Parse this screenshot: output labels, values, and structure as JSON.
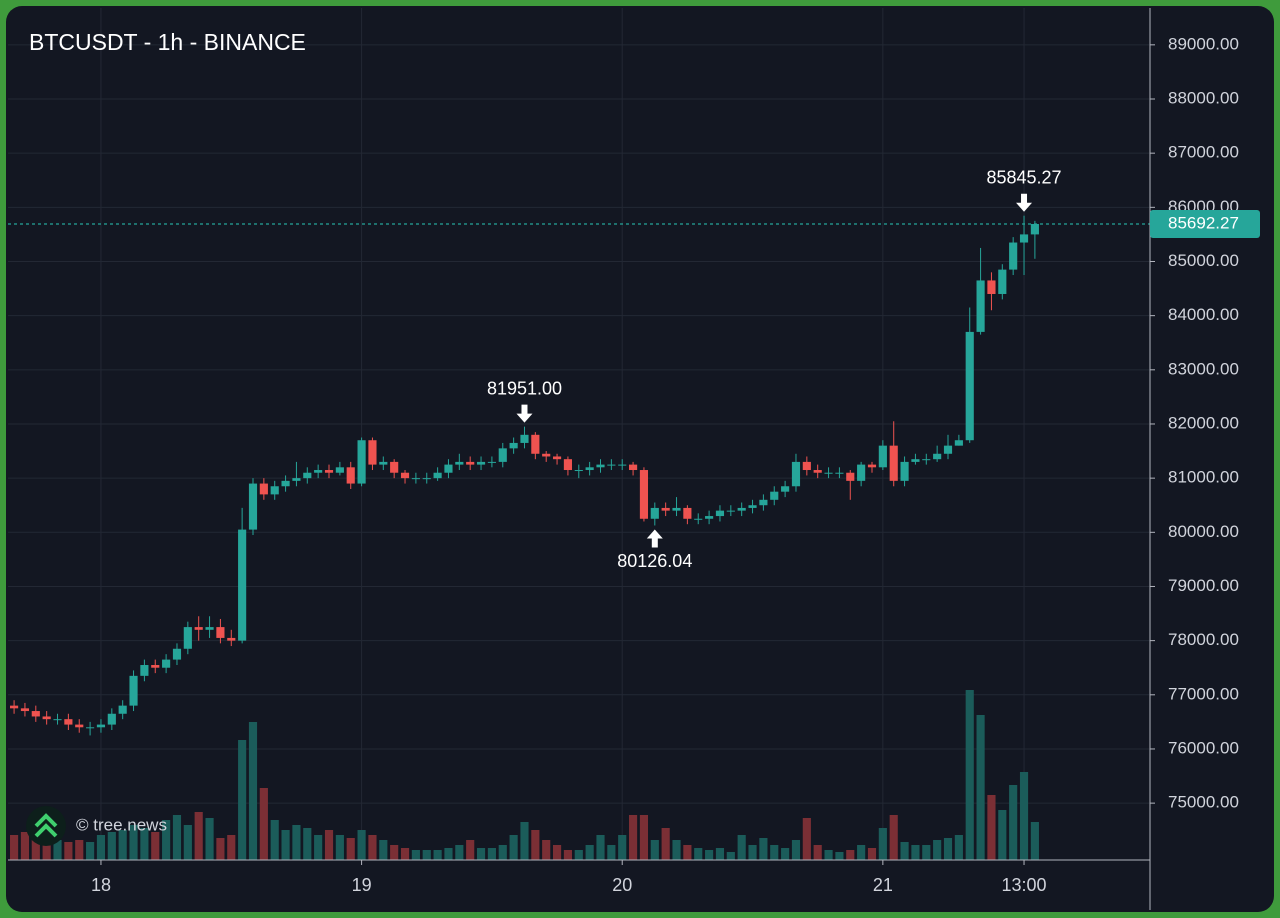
{
  "chart_data": {
    "type": "candlestick",
    "title": "BTCUSDT - 1h - BINANCE",
    "watermark": "© tree.news",
    "up_color": "#26a69a",
    "down_color": "#ef5350",
    "volume_up_color": "#1b5c5a",
    "volume_down_color": "#7b2f35",
    "open": [
      76800,
      76750,
      76700,
      76600,
      76550,
      76550,
      76450,
      76400,
      76400,
      76450,
      76650,
      76800,
      77350,
      77550,
      77500,
      77650,
      77850,
      78250,
      78200,
      78250,
      78050,
      78000,
      80050,
      80900,
      80700,
      80850,
      80950,
      81000,
      81100,
      81150,
      81100,
      81200,
      80900,
      81700,
      81250,
      81300,
      81100,
      81000,
      81000,
      81000,
      81100,
      81250,
      81300,
      81250,
      81300,
      81300,
      81550,
      81650,
      81800,
      81450,
      81400,
      81350,
      81150,
      81150,
      81200,
      81250,
      81250,
      81250,
      81150,
      80250,
      80450,
      80400,
      80450,
      80250,
      80250,
      80300,
      80400,
      80400,
      80450,
      80500,
      80600,
      80750,
      80850,
      81300,
      81150,
      81100,
      81100,
      81100,
      80950,
      81250,
      81200,
      81600,
      80950,
      81300,
      81350,
      81350,
      81450,
      81600,
      81700,
      83700,
      84650,
      84400,
      84850,
      85350,
      85500
    ],
    "high": [
      76900,
      76850,
      76800,
      76700,
      76650,
      76650,
      76550,
      76500,
      76550,
      76750,
      76900,
      77450,
      77650,
      77650,
      77750,
      77950,
      78350,
      78450,
      78450,
      78400,
      78200,
      80450,
      81000,
      81000,
      80950,
      81050,
      81300,
      81200,
      81250,
      81250,
      81300,
      81300,
      81750,
      81750,
      81400,
      81350,
      81150,
      81100,
      81100,
      81200,
      81350,
      81450,
      81400,
      81400,
      81400,
      81650,
      81750,
      81951,
      81850,
      81500,
      81450,
      81400,
      81250,
      81300,
      81350,
      81350,
      81350,
      81300,
      81200,
      80550,
      80550,
      80650,
      80500,
      80350,
      80400,
      80500,
      80500,
      80550,
      80600,
      80700,
      80850,
      80950,
      81450,
      81400,
      81250,
      81200,
      81200,
      81150,
      81300,
      81300,
      81700,
      82050,
      81400,
      81450,
      81450,
      81600,
      81800,
      81800,
      84150,
      85250,
      84800,
      84950,
      85450,
      85845.27,
      85750
    ],
    "low": [
      76650,
      76600,
      76500,
      76450,
      76450,
      76350,
      76300,
      76250,
      76300,
      76350,
      76550,
      76700,
      77250,
      77400,
      77400,
      77550,
      77750,
      78000,
      78050,
      77950,
      77900,
      77950,
      79950,
      80600,
      80600,
      80750,
      80850,
      80900,
      81000,
      81000,
      81050,
      80800,
      80850,
      81150,
      81150,
      81000,
      80900,
      80900,
      80900,
      80950,
      81000,
      81150,
      81150,
      81150,
      81200,
      81200,
      81450,
      81550,
      81350,
      81300,
      81250,
      81050,
      81000,
      81050,
      81100,
      81150,
      81150,
      81050,
      80200,
      80126.04,
      80300,
      80300,
      80150,
      80150,
      80150,
      80200,
      80300,
      80300,
      80350,
      80400,
      80500,
      80650,
      80750,
      81050,
      81000,
      81000,
      81000,
      80600,
      80850,
      81100,
      81150,
      80850,
      80850,
      81250,
      81250,
      81300,
      81350,
      81600,
      81650,
      83650,
      84100,
      84300,
      84750,
      84750,
      85050
    ],
    "close": [
      76750,
      76700,
      76600,
      76550,
      76550,
      76450,
      76400,
      76400,
      76450,
      76650,
      76800,
      77350,
      77550,
      77500,
      77650,
      77850,
      78250,
      78200,
      78250,
      78050,
      78000,
      80050,
      80900,
      80700,
      80850,
      80950,
      81000,
      81100,
      81150,
      81100,
      81200,
      80900,
      81700,
      81250,
      81300,
      81100,
      81000,
      81000,
      81000,
      81100,
      81250,
      81300,
      81250,
      81300,
      81300,
      81550,
      81650,
      81800,
      81450,
      81400,
      81350,
      81150,
      81150,
      81200,
      81250,
      81250,
      81250,
      81150,
      80250,
      80450,
      80400,
      80450,
      80250,
      80250,
      80300,
      80400,
      80400,
      80450,
      80500,
      80600,
      80750,
      80850,
      81300,
      81150,
      81100,
      81100,
      81100,
      80950,
      81250,
      81200,
      81600,
      80950,
      81300,
      81350,
      81350,
      81450,
      81600,
      81700,
      83700,
      84650,
      84400,
      84850,
      85350,
      85500,
      85692.27
    ],
    "volume": [
      25,
      28,
      22,
      18,
      20,
      18,
      20,
      18,
      25,
      28,
      30,
      35,
      32,
      28,
      40,
      45,
      35,
      48,
      42,
      22,
      25,
      120,
      138,
      72,
      40,
      30,
      35,
      32,
      25,
      30,
      25,
      22,
      30,
      25,
      20,
      15,
      12,
      10,
      10,
      10,
      12,
      15,
      20,
      12,
      12,
      15,
      25,
      38,
      30,
      20,
      15,
      10,
      10,
      15,
      25,
      15,
      25,
      45,
      45,
      20,
      32,
      20,
      15,
      12,
      10,
      12,
      8,
      25,
      15,
      22,
      15,
      12,
      20,
      42,
      15,
      10,
      8,
      10,
      15,
      12,
      32,
      45,
      18,
      15,
      15,
      20,
      22,
      25,
      170,
      145,
      65,
      50,
      75,
      88,
      38
    ],
    "volume_lim": [
      0,
      852
    ],
    "xlim": [
      -0.56,
      104.6
    ],
    "xticks": [
      {
        "value": 8,
        "label": "18"
      },
      {
        "value": 32,
        "label": "19"
      },
      {
        "value": 56,
        "label": "20"
      },
      {
        "value": 80,
        "label": "21"
      },
      {
        "value": 93,
        "label": "13:00"
      }
    ],
    "ylim": [
      73950,
      89680
    ],
    "yticks": [
      {
        "value": 75000,
        "label": "75000.00"
      },
      {
        "value": 76000,
        "label": "76000.00"
      },
      {
        "value": 77000,
        "label": "77000.00"
      },
      {
        "value": 78000,
        "label": "78000.00"
      },
      {
        "value": 79000,
        "label": "79000.00"
      },
      {
        "value": 80000,
        "label": "80000.00"
      },
      {
        "value": 81000,
        "label": "81000.00"
      },
      {
        "value": 82000,
        "label": "82000.00"
      },
      {
        "value": 83000,
        "label": "83000.00"
      },
      {
        "value": 84000,
        "label": "84000.00"
      },
      {
        "value": 85000,
        "label": "85000.00"
      },
      {
        "value": 86000,
        "label": "86000.00"
      },
      {
        "value": 87000,
        "label": "87000.00"
      },
      {
        "value": 88000,
        "label": "88000.00"
      },
      {
        "value": 89000,
        "label": "89000.00"
      }
    ],
    "grid": true,
    "annotations": [
      {
        "x": 47,
        "value": 81951,
        "label": "81951.00",
        "position": "above"
      },
      {
        "x": 59,
        "value": 80126.04,
        "label": "80126.04",
        "position": "below"
      },
      {
        "x": 93,
        "value": 85845.27,
        "label": "85845.27",
        "position": "above"
      }
    ],
    "last_price": {
      "value": 85692.27,
      "label": "85692.27"
    }
  }
}
